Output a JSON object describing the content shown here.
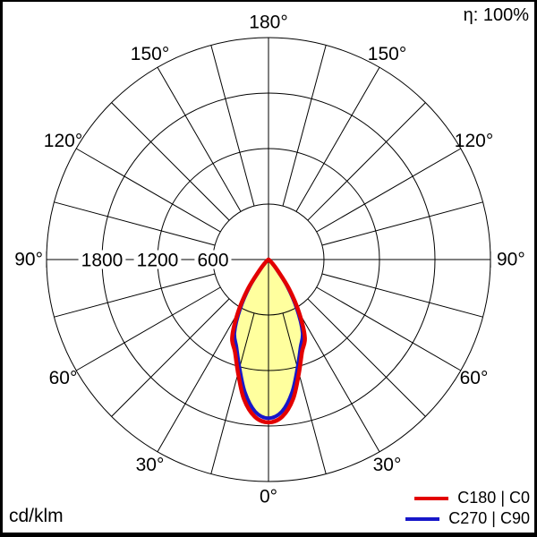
{
  "meta": {
    "efficiency_label": "η: 100%",
    "unit_label": "cd/klm"
  },
  "legend": [
    {
      "label": "C180 | C0",
      "color": "#e30000"
    },
    {
      "label": "C270 | C90",
      "color": "#1717c9"
    }
  ],
  "chart_data": {
    "type": "line",
    "coordinate_system": "polar-photometric",
    "unit": "cd/klm",
    "efficiency": "η: 100%",
    "r_max": 2400,
    "ring_values": [
      600,
      1200,
      1800,
      2400
    ],
    "ring_ticks": [
      1800,
      1200,
      600
    ],
    "angle_labels_deg": [
      0,
      30,
      60,
      90,
      120,
      150,
      180
    ],
    "radial_grid_step_deg": 15,
    "grid_color": "#000000",
    "fill_color": "#ffff9e",
    "gamma_deg": [
      0,
      5,
      10,
      15,
      20,
      25,
      30,
      35,
      40,
      45,
      50,
      55,
      60,
      65,
      70,
      75,
      80,
      85,
      90
    ],
    "series": [
      {
        "name": "C180 | C0",
        "color": "#e30000",
        "values": [
          1760,
          1705,
          1530,
          1270,
          1060,
          930,
          660,
          390,
          150,
          60,
          25,
          12,
          6,
          3,
          2,
          1,
          1,
          0,
          0
        ]
      },
      {
        "name": "C270 | C90",
        "color": "#1717c9",
        "values": [
          1715,
          1650,
          1460,
          1210,
          1010,
          870,
          610,
          350,
          125,
          45,
          18,
          8,
          4,
          2,
          1,
          1,
          0,
          0,
          0
        ]
      }
    ]
  }
}
